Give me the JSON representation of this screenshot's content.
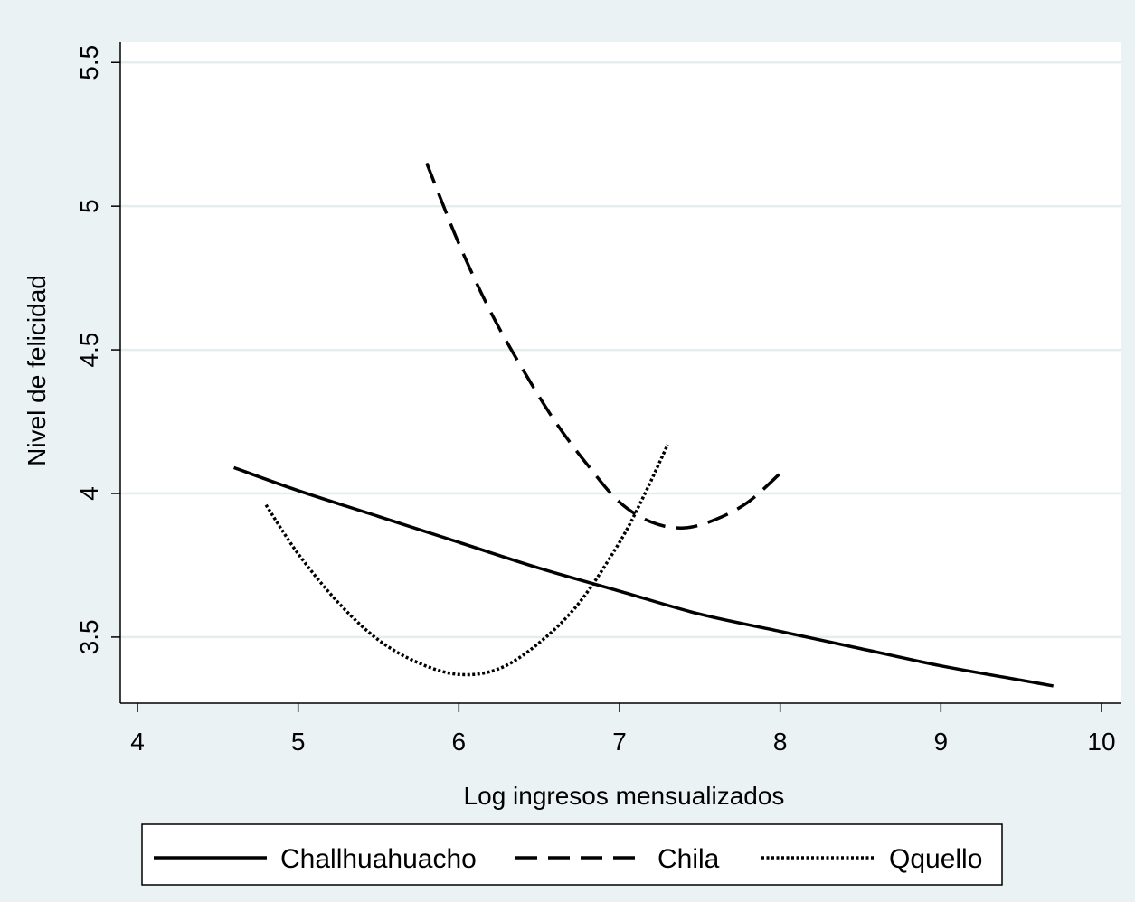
{
  "chart_data": {
    "type": "line",
    "title": "",
    "xlabel": "Log ingresos mensualizados",
    "ylabel": "Nivel de felicidad",
    "xlim": [
      4,
      10
    ],
    "ylim": [
      3.27,
      5.57
    ],
    "xticks": [
      "4",
      "5",
      "6",
      "7",
      "8",
      "9",
      "10"
    ],
    "xtick_values": [
      4,
      5,
      6,
      7,
      8,
      9,
      10
    ],
    "yticks": [
      "3.5",
      "4",
      "4.5",
      "5",
      "5.5"
    ],
    "ytick_values": [
      3.5,
      4,
      4.5,
      5,
      5.5
    ],
    "grid": "horizontal",
    "legend_position": "bottom",
    "series": [
      {
        "name": "Challhuahuacho",
        "style": "solid",
        "color": "#000000",
        "x": [
          4.6,
          5.0,
          5.5,
          6.0,
          6.5,
          7.0,
          7.5,
          8.0,
          8.5,
          9.0,
          9.5,
          9.7
        ],
        "y": [
          4.09,
          4.01,
          3.92,
          3.83,
          3.74,
          3.66,
          3.58,
          3.52,
          3.46,
          3.4,
          3.35,
          3.33
        ]
      },
      {
        "name": "Chila",
        "style": "dashed",
        "color": "#000000",
        "x": [
          5.8,
          6.0,
          6.2,
          6.4,
          6.6,
          6.8,
          7.0,
          7.2,
          7.4,
          7.6,
          7.8,
          8.0
        ],
        "y": [
          5.15,
          4.87,
          4.63,
          4.43,
          4.25,
          4.1,
          3.97,
          3.9,
          3.88,
          3.91,
          3.97,
          4.07
        ]
      },
      {
        "name": "Qquello",
        "style": "dotted",
        "color": "#000000",
        "x": [
          4.8,
          5.0,
          5.25,
          5.5,
          5.75,
          6.0,
          6.25,
          6.5,
          6.75,
          7.0,
          7.15,
          7.3
        ],
        "y": [
          3.96,
          3.79,
          3.62,
          3.49,
          3.41,
          3.37,
          3.39,
          3.48,
          3.62,
          3.83,
          3.99,
          4.17
        ]
      }
    ]
  }
}
